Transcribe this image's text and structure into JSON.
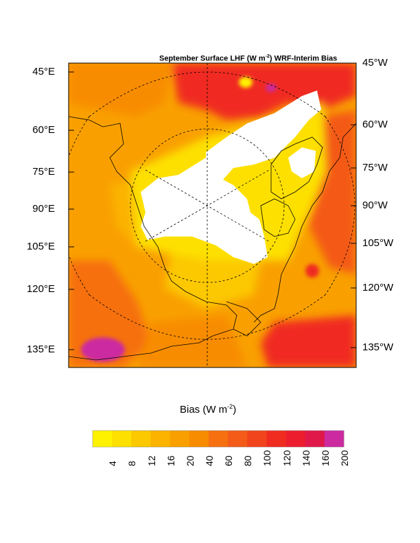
{
  "title": {
    "pre": "September Surface LHF (W m",
    "sup": "-2",
    "post": ") WRF-Interim Bias"
  },
  "left_lon_labels": [
    "45°E",
    "60°E",
    "75°E",
    "90°E",
    "105°E",
    "120°E",
    "135°E"
  ],
  "right_lon_labels": [
    "45°W",
    "60°W",
    "75°W",
    "90°W",
    "105°W",
    "120°W",
    "135°W"
  ],
  "colorbar": {
    "title_pre": "Bias (W m",
    "title_sup": "-2",
    "title_post": ")",
    "levels": [
      "4",
      "8",
      "12",
      "16",
      "20",
      "40",
      "60",
      "80",
      "100",
      "120",
      "140",
      "160",
      "200"
    ],
    "colors": [
      "#fff200",
      "#fde000",
      "#fcc800",
      "#fbb300",
      "#f9a000",
      "#f88c00",
      "#f67010",
      "#f45a18",
      "#f2441c",
      "#f02c20",
      "#ec1e2e",
      "#e0184a",
      "#cc2aa0"
    ]
  }
}
